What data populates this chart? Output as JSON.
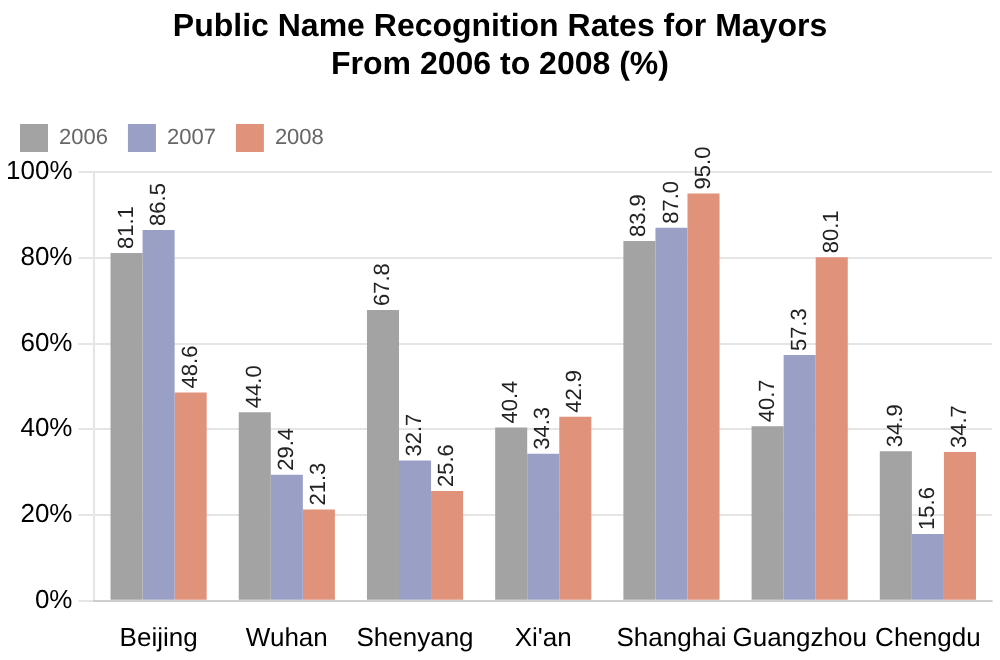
{
  "chart_data": {
    "type": "bar",
    "title": "Public Name Recognition Rates for Mayors\nFrom 2006 to 2008 (%)",
    "categories": [
      "Beijing",
      "Wuhan",
      "Shenyang",
      "Xi'an",
      "Shanghai",
      "Guangzhou",
      "Chengdu"
    ],
    "series": [
      {
        "name": "2006",
        "color": "#a3a3a3",
        "values": [
          81.1,
          44.0,
          67.8,
          40.4,
          83.9,
          40.7,
          34.9
        ],
        "value_labels": [
          "81.1",
          "44.0",
          "67.8",
          "40.4",
          "83.9",
          "40.7",
          "34.9"
        ]
      },
      {
        "name": "2007",
        "color": "#9a9fc6",
        "values": [
          86.5,
          29.4,
          32.7,
          34.3,
          87.0,
          57.3,
          15.6
        ],
        "value_labels": [
          "86.5",
          "29.4",
          "32.7",
          "34.3",
          "87.0",
          "57.3",
          "15.6"
        ]
      },
      {
        "name": "2008",
        "color": "#e0937a",
        "values": [
          48.6,
          21.3,
          25.6,
          42.9,
          95.0,
          80.1,
          34.7
        ],
        "value_labels": [
          "48.6",
          "21.3",
          "25.6",
          "42.9",
          "95.0",
          "80.1",
          "34.7"
        ]
      }
    ],
    "ylim": [
      0,
      100
    ],
    "yticks": [
      {
        "value": 0,
        "label": "0%"
      },
      {
        "value": 20,
        "label": "20%"
      },
      {
        "value": 40,
        "label": "40%"
      },
      {
        "value": 60,
        "label": "60%"
      },
      {
        "value": 80,
        "label": "80%"
      },
      {
        "value": 100,
        "label": "100%"
      }
    ],
    "grid": "y",
    "legend": "top left"
  }
}
